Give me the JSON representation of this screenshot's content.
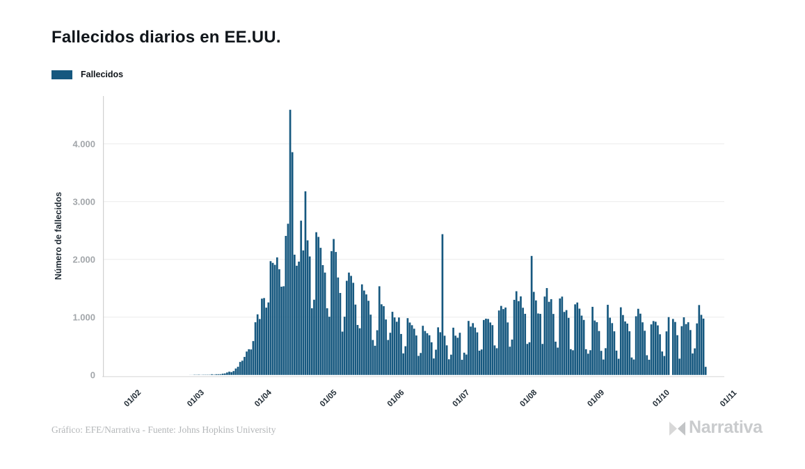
{
  "header": {
    "title": "Fallecidos diarios en EE.UU."
  },
  "legend": {
    "label": "Fallecidos",
    "color": "#16587f"
  },
  "footer": {
    "credit": "Gráfico: EFE/Narrativa - Fuente: Johns Hopkins University",
    "logo_text": "Narrativa"
  },
  "colors": {
    "bar": "#16587f",
    "grid": "#ececec",
    "axis": "#cfcfcf",
    "baseline": "#d9d9d9",
    "y_tick_text": "#a2a6aa",
    "x_tick_text": "#1f2a33",
    "title": "#10151a",
    "footer_text": "#b3b6b8",
    "logo": "#c9cbcd"
  },
  "chart_data": {
    "type": "bar",
    "title": "Fallecidos diarios en EE.UU.",
    "xlabel": "",
    "ylabel": "Número de fallecidos",
    "ylim": [
      0,
      4800
    ],
    "grid": true,
    "legend_position": "top-left",
    "y_ticks": [
      {
        "value": 0,
        "label": "0"
      },
      {
        "value": 1000,
        "label": "1.000"
      },
      {
        "value": 2000,
        "label": "2.000"
      },
      {
        "value": 3000,
        "label": "3.000"
      },
      {
        "value": 4000,
        "label": "4.000"
      }
    ],
    "x_ticks": [
      {
        "label": "01/02",
        "day": 10
      },
      {
        "label": "01/03",
        "day": 39
      },
      {
        "label": "01/04",
        "day": 70
      },
      {
        "label": "01/05",
        "day": 100
      },
      {
        "label": "01/06",
        "day": 131
      },
      {
        "label": "01/07",
        "day": 161
      },
      {
        "label": "01/08",
        "day": 192
      },
      {
        "label": "01/09",
        "day": 223
      },
      {
        "label": "01/10",
        "day": 253
      },
      {
        "label": "01/11",
        "day": 284
      }
    ],
    "total_days": 285,
    "series": [
      {
        "name": "Fallecidos",
        "color": "#16587f",
        "values": [
          0,
          0,
          0,
          0,
          0,
          0,
          0,
          0,
          0,
          0,
          0,
          0,
          0,
          0,
          0,
          0,
          0,
          0,
          0,
          0,
          0,
          0,
          0,
          0,
          0,
          0,
          0,
          0,
          0,
          0,
          0,
          0,
          0,
          0,
          0,
          0,
          0,
          0,
          0,
          1,
          1,
          4,
          3,
          5,
          2,
          4,
          4,
          4,
          4,
          8,
          5,
          10,
          11,
          13,
          22,
          26,
          42,
          56,
          49,
          67,
          111,
          141,
          225,
          247,
          312,
          405,
          445,
          441,
          586,
          912,
          1049,
          968,
          1321,
          1331,
          1165,
          1255,
          1970,
          1940,
          1906,
          2035,
          1830,
          1528,
          1535,
          2407,
          2618,
          4591,
          3857,
          2082,
          1891,
          1962,
          2671,
          2156,
          3179,
          2330,
          2051,
          1154,
          1302,
          2471,
          2390,
          2201,
          1901,
          1772,
          1154,
          1008,
          2144,
          2353,
          2129,
          1687,
          1419,
          750,
          1008,
          1630,
          1772,
          1715,
          1595,
          1218,
          865,
          808,
          1568,
          1461,
          1394,
          1284,
          1044,
          605,
          505,
          774,
          1535,
          1223,
          1190,
          960,
          605,
          730,
          1093,
          995,
          921,
          994,
          709,
          373,
          497,
          983,
          907,
          861,
          800,
          683,
          330,
          380,
          851,
          761,
          722,
          687,
          565,
          285,
          437,
          824,
          739,
          2437,
          679,
          512,
          271,
          351,
          818,
          680,
          644,
          730,
          262,
          385,
          353,
          935,
          837,
          897,
          820,
          737,
          420,
          441,
          951,
          974,
          969,
          908,
          862,
          511,
          462,
          1116,
          1195,
          1140,
          1167,
          909,
          489,
          612,
          1300,
          1449,
          1278,
          1360,
          1163,
          1058,
          537,
          565,
          2060,
          1438,
          1290,
          1064,
          1057,
          537,
          1357,
          1504,
          1266,
          1312,
          1056,
          576,
          473,
          1324,
          1356,
          1091,
          1122,
          988,
          446,
          427,
          1222,
          1254,
          1148,
          1027,
          952,
          445,
          368,
          428,
          1179,
          942,
          914,
          760,
          417,
          267,
          463,
          1214,
          991,
          897,
          755,
          421,
          280,
          1171,
          1037,
          926,
          889,
          756,
          302,
          267,
          1016,
          1145,
          1061,
          911,
          765,
          341,
          263,
          875,
          933,
          921,
          858,
          704,
          406,
          328,
          754,
          1001,
          0,
          969,
          917,
          688,
          282,
          844,
          998,
          880,
          912,
          777,
          372,
          460,
          892,
          1210,
          1040,
          975,
          140
        ]
      }
    ]
  }
}
